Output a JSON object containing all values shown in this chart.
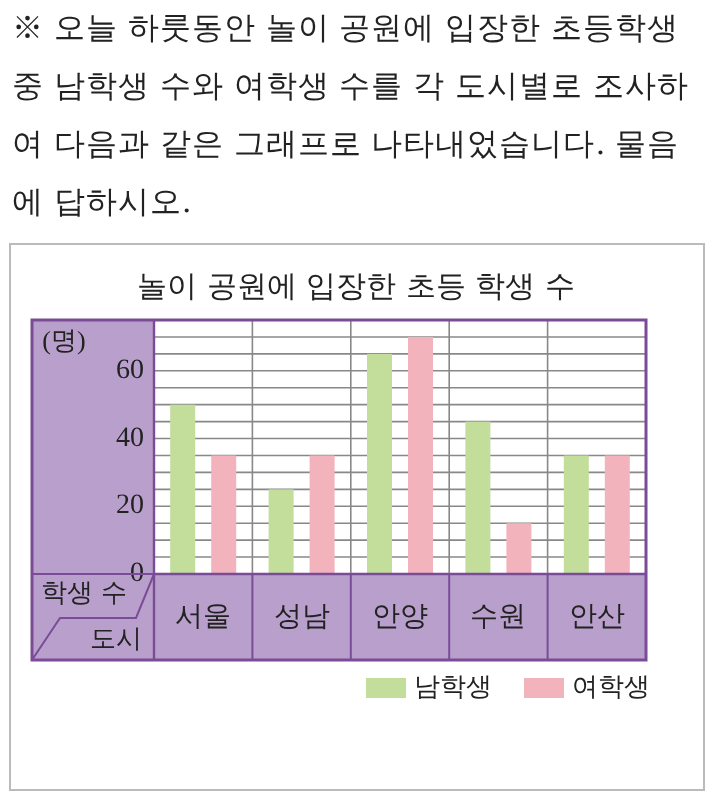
{
  "chart_data": {
    "type": "bar",
    "title": "놀이 공원에 입장한 초등 학생 수",
    "xlabel": "도시",
    "ylabel": "학생 수",
    "annotations": [
      "※ 오늘 하룻동안 놀이 공원에 입장한 초등학생 중 남학생 수와 여학생 수를 각 도시별로 조사하여 다음과 같은 그래프로 나타내었습니다. 물음에 답하시오.",
      "(명)"
    ],
    "categories": [
      "서울",
      "성남",
      "안양",
      "수원",
      "안산"
    ],
    "series": [
      {
        "name": "남학생",
        "color": "#c3dd9b",
        "values": [
          50,
          25,
          65,
          45,
          35
        ]
      },
      {
        "name": "여학생",
        "color": "#f2b3bd",
        "values": [
          35,
          35,
          70,
          15,
          35
        ]
      }
    ],
    "ylim": [
      0,
      75
    ],
    "yticks": [
      0,
      {
        "value": 5,
        "label": null
      },
      {
        "value": 10,
        "label": null
      },
      {
        "value": 15,
        "label": null
      },
      20,
      {
        "value": 25,
        "label": null
      },
      {
        "value": 30,
        "label": null
      },
      {
        "value": 35,
        "label": null
      },
      40,
      {
        "value": 45,
        "label": null
      },
      {
        "value": 50,
        "label": null
      },
      {
        "value": 55,
        "label": null
      },
      60,
      {
        "value": 65,
        "label": null
      },
      {
        "value": 70,
        "label": null
      }
    ],
    "grid": true,
    "legend": "bottom right"
  }
}
